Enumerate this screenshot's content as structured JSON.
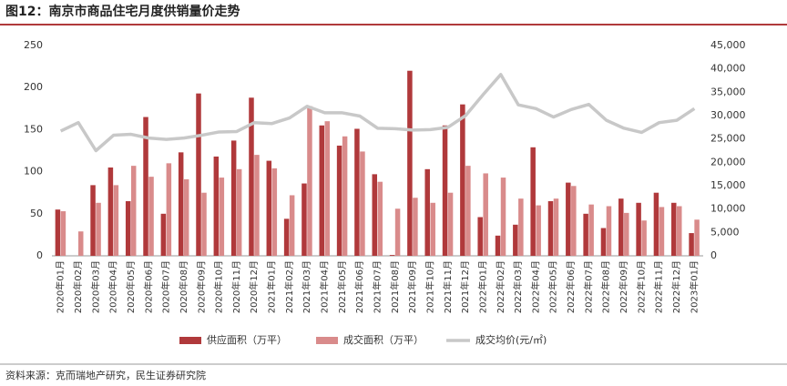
{
  "chart_data": {
    "type": "bar-line",
    "title": "图12：南京市商品住宅月度供销量价走势",
    "source": "资料来源：克而瑞地产研究，民生证券研究院",
    "categories": [
      "2020年01月",
      "2020年02月",
      "2020年03月",
      "2020年04月",
      "2020年05月",
      "2020年06月",
      "2020年07月",
      "2020年08月",
      "2020年09月",
      "2020年10月",
      "2020年11月",
      "2020年12月",
      "2021年01月",
      "2021年02月",
      "2021年03月",
      "2021年04月",
      "2021年05月",
      "2021年06月",
      "2021年07月",
      "2021年08月",
      "2021年09月",
      "2021年10月",
      "2021年11月",
      "2021年12月",
      "2022年01月",
      "2022年02月",
      "2022年03月",
      "2022年04月",
      "2022年05月",
      "2022年06月",
      "2022年07月",
      "2022年08月",
      "2022年09月",
      "2022年10月",
      "2022年11月",
      "2022年12月",
      "2023年01月"
    ],
    "series": [
      {
        "name": "供应面积（万平）",
        "color": "#b0393b",
        "kind": "bar",
        "values": [
          55,
          0,
          84,
          105,
          65,
          165,
          50,
          123,
          193,
          118,
          137,
          188,
          113,
          44,
          86,
          155,
          131,
          151,
          97,
          1,
          220,
          103,
          155,
          180,
          46,
          24,
          37,
          129,
          65,
          87,
          50,
          33,
          68,
          63,
          75,
          63,
          27
        ]
      },
      {
        "name": "成交面积（万平）",
        "color": "#d98b8b",
        "kind": "bar",
        "values": [
          53,
          29,
          63,
          84,
          107,
          94,
          110,
          91,
          75,
          93,
          103,
          120,
          104,
          72,
          178,
          160,
          142,
          124,
          88,
          56,
          69,
          63,
          75,
          107,
          98,
          93,
          68,
          60,
          68,
          83,
          61,
          59,
          51,
          42,
          58,
          59,
          43
        ]
      },
      {
        "name": "成交均价(元/㎡)",
        "color": "#c8c8c8",
        "kind": "line",
        "axis": "y2",
        "values": [
          26700,
          28500,
          22500,
          25800,
          26000,
          25200,
          24900,
          25200,
          25800,
          26500,
          26600,
          28500,
          28300,
          29500,
          32000,
          30600,
          30600,
          29900,
          27300,
          27200,
          26900,
          27000,
          27500,
          30000,
          34500,
          38800,
          32300,
          31500,
          29700,
          31300,
          32400,
          29000,
          27300,
          26400,
          28500,
          29000,
          31500
        ]
      }
    ],
    "ylim": [
      0,
      250
    ],
    "yticks": [
      0,
      50,
      100,
      150,
      200,
      250
    ],
    "y2lim": [
      0,
      45000
    ],
    "y2ticks": [
      0,
      {
        "value": 5000,
        "label": "5,000"
      },
      {
        "value": 10000,
        "label": "10,000"
      },
      {
        "value": 15000,
        "label": "15,000"
      },
      {
        "value": 20000,
        "label": "20,000"
      },
      {
        "value": 25000,
        "label": "25,000"
      },
      {
        "value": 30000,
        "label": "30,000"
      },
      {
        "value": 35000,
        "label": "35,000"
      },
      {
        "value": 40000,
        "label": "40,000"
      },
      {
        "value": 45000,
        "label": "45,000"
      }
    ],
    "legend": "bottom"
  }
}
